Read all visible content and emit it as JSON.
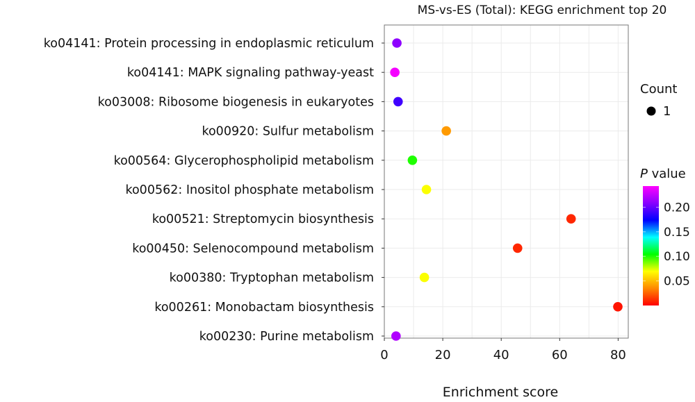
{
  "chart_data": {
    "type": "scatter",
    "title": "MS-vs-ES (Total): KEGG enrichment top 20",
    "xlabel": "Enrichment score",
    "ylabel": "",
    "xlim": [
      0,
      82
    ],
    "xticks": [
      "0",
      "20",
      "40",
      "60",
      "80"
    ],
    "grid": true,
    "categories": [
      "ko04141: Protein processing in endoplasmic reticulum",
      "ko04141: MAPK signaling pathway-yeast",
      "ko03008: Ribosome biogenesis in eukaryotes",
      "ko00920: Sulfur metabolism",
      "ko00564: Glycerophospholipid metabolism",
      "ko00562: Inositol phosphate metabolism",
      "ko00521: Streptomycin biosynthesis",
      "ko00450: Selenocompound metabolism",
      "ko00380: Tryptophan metabolism",
      "ko00261: Monobactam biosynthesis",
      "ko00230: Purine metabolism"
    ],
    "enrichment_score": [
      4.3,
      3.6,
      4.7,
      21.2,
      9.6,
      14.4,
      63.9,
      45.6,
      13.7,
      79.9,
      4.0
    ],
    "p_value": [
      0.21,
      0.24,
      0.19,
      0.04,
      0.1,
      0.07,
      0.01,
      0.01,
      0.07,
      0.005,
      0.22
    ],
    "count": [
      1,
      1,
      1,
      1,
      1,
      1,
      1,
      1,
      1,
      1,
      1
    ],
    "legend": {
      "placement": "right",
      "count_title": "Count",
      "count_value": "1",
      "color_title_italic": "P",
      "color_title_rest": " value",
      "color_range": [
        0,
        0.243
      ],
      "color_ticks": [
        "0.20",
        "0.15",
        "0.10",
        "0.05"
      ],
      "colormap": [
        "#ff0000",
        "#ff8800",
        "#ffff00",
        "#00ff00",
        "#00ffff",
        "#0000ff",
        "#8800ff",
        "#ff00ff"
      ]
    }
  }
}
